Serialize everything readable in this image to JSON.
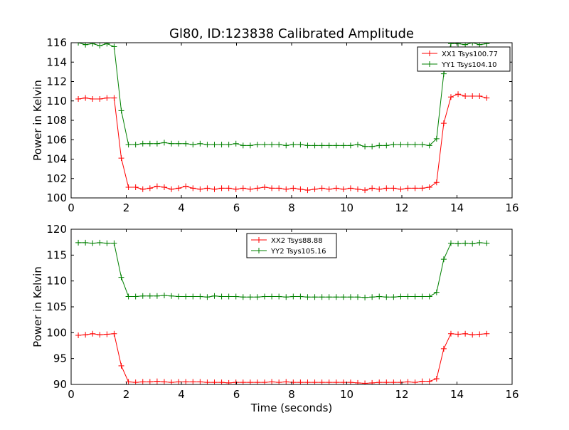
{
  "figure_title": "Gl80, ID:123838 Calibrated Amplitude",
  "chart_data": [
    {
      "type": "line",
      "title": "Gl80, ID:123838 Calibrated Amplitude",
      "xlabel": "",
      "ylabel": "Power in Kelvin",
      "xlim": [
        0,
        16
      ],
      "ylim": [
        100,
        116
      ],
      "xticks": [
        0,
        2,
        4,
        6,
        8,
        10,
        12,
        14,
        16
      ],
      "yticks": [
        100,
        102,
        104,
        106,
        108,
        110,
        112,
        114,
        116
      ],
      "legend_position": "top-right",
      "grid": false,
      "x": [
        0.26,
        0.52,
        0.78,
        1.04,
        1.3,
        1.56,
        1.82,
        2.08,
        2.34,
        2.6,
        2.86,
        3.12,
        3.38,
        3.64,
        3.9,
        4.16,
        4.42,
        4.68,
        4.94,
        5.2,
        5.46,
        5.72,
        5.98,
        6.24,
        6.5,
        6.76,
        7.02,
        7.28,
        7.54,
        7.8,
        8.06,
        8.32,
        8.58,
        8.84,
        9.1,
        9.36,
        9.62,
        9.88,
        10.14,
        10.4,
        10.66,
        10.92,
        11.18,
        11.44,
        11.7,
        11.96,
        12.22,
        12.48,
        12.74,
        13.0,
        13.26,
        13.52,
        13.78,
        14.04,
        14.3,
        14.56,
        14.82,
        15.08
      ],
      "series": [
        {
          "name": "XX1 Tsys100.77",
          "color": "#ff0000",
          "values": [
            110.2,
            110.3,
            110.2,
            110.2,
            110.3,
            110.3,
            104.1,
            101.1,
            101.1,
            100.9,
            101.0,
            101.2,
            101.1,
            100.9,
            101.0,
            101.2,
            101.0,
            100.9,
            101.0,
            100.9,
            101.0,
            101.0,
            100.9,
            101.0,
            100.9,
            101.0,
            101.1,
            101.0,
            101.0,
            100.9,
            101.0,
            100.9,
            100.8,
            100.9,
            101.0,
            100.9,
            101.0,
            100.9,
            101.0,
            100.9,
            100.8,
            101.0,
            100.9,
            101.0,
            101.0,
            100.9,
            101.0,
            101.0,
            101.0,
            101.1,
            101.6,
            107.7,
            110.4,
            110.7,
            110.5,
            110.5,
            110.5,
            110.3
          ]
        },
        {
          "name": "YY1 Tsys104.10",
          "color": "#008000",
          "values": [
            116.0,
            115.8,
            115.9,
            115.7,
            115.9,
            115.6,
            109.0,
            105.5,
            105.5,
            105.6,
            105.6,
            105.6,
            105.7,
            105.6,
            105.6,
            105.6,
            105.5,
            105.6,
            105.5,
            105.5,
            105.5,
            105.5,
            105.6,
            105.4,
            105.4,
            105.5,
            105.5,
            105.5,
            105.5,
            105.4,
            105.5,
            105.5,
            105.4,
            105.4,
            105.4,
            105.4,
            105.4,
            105.4,
            105.4,
            105.5,
            105.3,
            105.3,
            105.4,
            105.4,
            105.5,
            105.5,
            105.5,
            105.5,
            105.5,
            105.4,
            106.1,
            112.8,
            115.9,
            115.9,
            115.8,
            116.0,
            115.8,
            115.9
          ]
        }
      ]
    },
    {
      "type": "line",
      "title": "",
      "xlabel": "Time (seconds)",
      "ylabel": "Power in Kelvin",
      "xlim": [
        0,
        16
      ],
      "ylim": [
        90,
        120
      ],
      "xticks": [
        0,
        2,
        4,
        6,
        8,
        10,
        12,
        14,
        16
      ],
      "yticks": [
        90,
        95,
        100,
        105,
        110,
        115,
        120
      ],
      "legend_position": "top-center",
      "grid": false,
      "x": [
        0.26,
        0.52,
        0.78,
        1.04,
        1.3,
        1.56,
        1.82,
        2.08,
        2.34,
        2.6,
        2.86,
        3.12,
        3.38,
        3.64,
        3.9,
        4.16,
        4.42,
        4.68,
        4.94,
        5.2,
        5.46,
        5.72,
        5.98,
        6.24,
        6.5,
        6.76,
        7.02,
        7.28,
        7.54,
        7.8,
        8.06,
        8.32,
        8.58,
        8.84,
        9.1,
        9.36,
        9.62,
        9.88,
        10.14,
        10.4,
        10.66,
        10.92,
        11.18,
        11.44,
        11.7,
        11.96,
        12.22,
        12.48,
        12.74,
        13.0,
        13.26,
        13.52,
        13.78,
        14.04,
        14.3,
        14.56,
        14.82,
        15.08
      ],
      "series": [
        {
          "name": "XX2 Tsys88.88",
          "color": "#ff0000",
          "values": [
            99.5,
            99.6,
            99.8,
            99.6,
            99.7,
            99.8,
            93.6,
            90.5,
            90.4,
            90.5,
            90.5,
            90.6,
            90.5,
            90.4,
            90.5,
            90.5,
            90.5,
            90.5,
            90.4,
            90.4,
            90.4,
            90.3,
            90.4,
            90.4,
            90.4,
            90.4,
            90.4,
            90.5,
            90.4,
            90.5,
            90.4,
            90.4,
            90.4,
            90.4,
            90.4,
            90.4,
            90.4,
            90.4,
            90.4,
            90.3,
            90.2,
            90.3,
            90.4,
            90.4,
            90.4,
            90.4,
            90.5,
            90.4,
            90.6,
            90.6,
            91.1,
            96.9,
            99.8,
            99.7,
            99.8,
            99.6,
            99.7,
            99.8
          ]
        },
        {
          "name": "YY2 Tsys105.16",
          "color": "#008000",
          "values": [
            117.4,
            117.4,
            117.3,
            117.4,
            117.3,
            117.3,
            110.7,
            107.0,
            107.0,
            107.1,
            107.1,
            107.1,
            107.2,
            107.1,
            107.0,
            107.0,
            107.0,
            107.0,
            106.9,
            107.1,
            107.0,
            107.0,
            107.0,
            106.9,
            106.9,
            106.9,
            107.0,
            107.0,
            107.0,
            106.9,
            107.0,
            107.0,
            106.9,
            106.9,
            106.9,
            106.9,
            106.9,
            106.9,
            106.9,
            106.9,
            106.8,
            106.9,
            107.0,
            106.9,
            106.9,
            107.0,
            107.0,
            107.0,
            107.0,
            107.0,
            107.8,
            114.2,
            117.3,
            117.2,
            117.3,
            117.2,
            117.4,
            117.3
          ]
        }
      ]
    }
  ]
}
